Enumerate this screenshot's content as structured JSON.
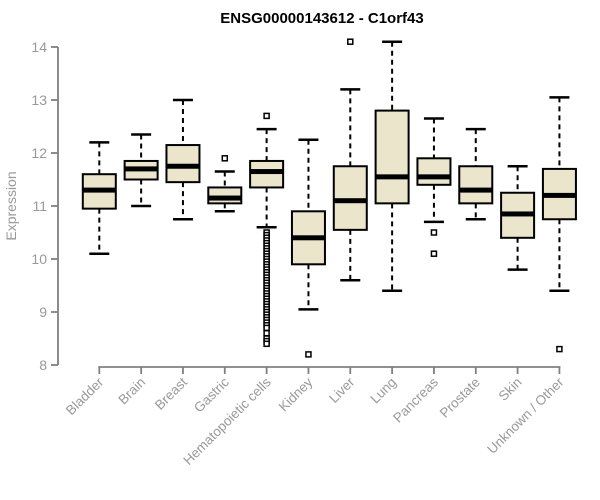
{
  "title": "ENSG00000143612 - C1orf43",
  "chart_data": {
    "type": "boxplot",
    "title": "ENSG00000143612 - C1orf43",
    "xlabel": "",
    "ylabel": "Expression",
    "ylim": [
      8,
      14.25
    ],
    "yticks": [
      8,
      9,
      10,
      11,
      12,
      13,
      14
    ],
    "grid": false,
    "legend": "none",
    "categories": [
      "Bladder",
      "Brain",
      "Breast",
      "Gastric",
      "Hematopoietic cells",
      "Kidney",
      "Liver",
      "Lung",
      "Pancreas",
      "Prostate",
      "Skin",
      "Unknown / Other"
    ],
    "boxes": [
      {
        "category": "Bladder",
        "low": 10.1,
        "q1": 10.95,
        "median": 11.3,
        "q3": 11.6,
        "high": 12.2,
        "outliers": []
      },
      {
        "category": "Brain",
        "low": 11.0,
        "q1": 11.5,
        "median": 11.7,
        "q3": 11.85,
        "high": 12.35,
        "outliers": []
      },
      {
        "category": "Breast",
        "low": 10.75,
        "q1": 11.45,
        "median": 11.75,
        "q3": 12.15,
        "high": 13.0,
        "outliers": []
      },
      {
        "category": "Gastric",
        "low": 10.9,
        "q1": 11.05,
        "median": 11.15,
        "q3": 11.35,
        "high": 11.65,
        "outliers": [
          11.9
        ]
      },
      {
        "category": "Hematopoietic cells",
        "low": 10.6,
        "q1": 11.35,
        "median": 11.65,
        "q3": 11.85,
        "high": 12.45,
        "outliers": [
          12.7,
          10.5,
          10.45,
          10.4,
          10.35,
          10.3,
          10.25,
          10.2,
          10.15,
          10.1,
          10.05,
          10.0,
          9.95,
          9.9,
          9.85,
          9.8,
          9.75,
          9.7,
          9.65,
          9.6,
          9.55,
          9.5,
          9.45,
          9.4,
          9.35,
          9.3,
          9.25,
          9.2,
          9.15,
          9.1,
          9.05,
          9.0,
          8.95,
          8.9,
          8.85,
          8.8,
          8.75,
          8.7,
          8.6,
          8.5,
          8.45,
          8.4
        ]
      },
      {
        "category": "Kidney",
        "low": 9.05,
        "q1": 9.9,
        "median": 10.4,
        "q3": 10.9,
        "high": 12.25,
        "outliers": [
          8.2
        ]
      },
      {
        "category": "Liver",
        "low": 9.6,
        "q1": 10.55,
        "median": 11.1,
        "q3": 11.75,
        "high": 13.2,
        "outliers": [
          14.1
        ]
      },
      {
        "category": "Lung",
        "low": 9.4,
        "q1": 11.05,
        "median": 11.55,
        "q3": 12.8,
        "high": 14.1,
        "outliers": []
      },
      {
        "category": "Pancreas",
        "low": 10.7,
        "q1": 11.4,
        "median": 11.55,
        "q3": 11.9,
        "high": 12.65,
        "outliers": [
          10.5,
          10.1
        ]
      },
      {
        "category": "Prostate",
        "low": 10.75,
        "q1": 11.05,
        "median": 11.3,
        "q3": 11.75,
        "high": 12.45,
        "outliers": []
      },
      {
        "category": "Skin",
        "low": 9.8,
        "q1": 10.4,
        "median": 10.85,
        "q3": 11.25,
        "high": 11.75,
        "outliers": []
      },
      {
        "category": "Unknown / Other",
        "low": 9.4,
        "q1": 10.75,
        "median": 11.2,
        "q3": 11.7,
        "high": 13.05,
        "outliers": [
          8.3
        ]
      }
    ],
    "colors": {
      "box_fill": "#EBE5CC",
      "box_stroke": "#000000",
      "median": "#000000",
      "whisker": "#000000",
      "axis_line": "#808080",
      "axis_text": "#999999",
      "title_text": "#000000",
      "background": "#ffffff"
    }
  }
}
